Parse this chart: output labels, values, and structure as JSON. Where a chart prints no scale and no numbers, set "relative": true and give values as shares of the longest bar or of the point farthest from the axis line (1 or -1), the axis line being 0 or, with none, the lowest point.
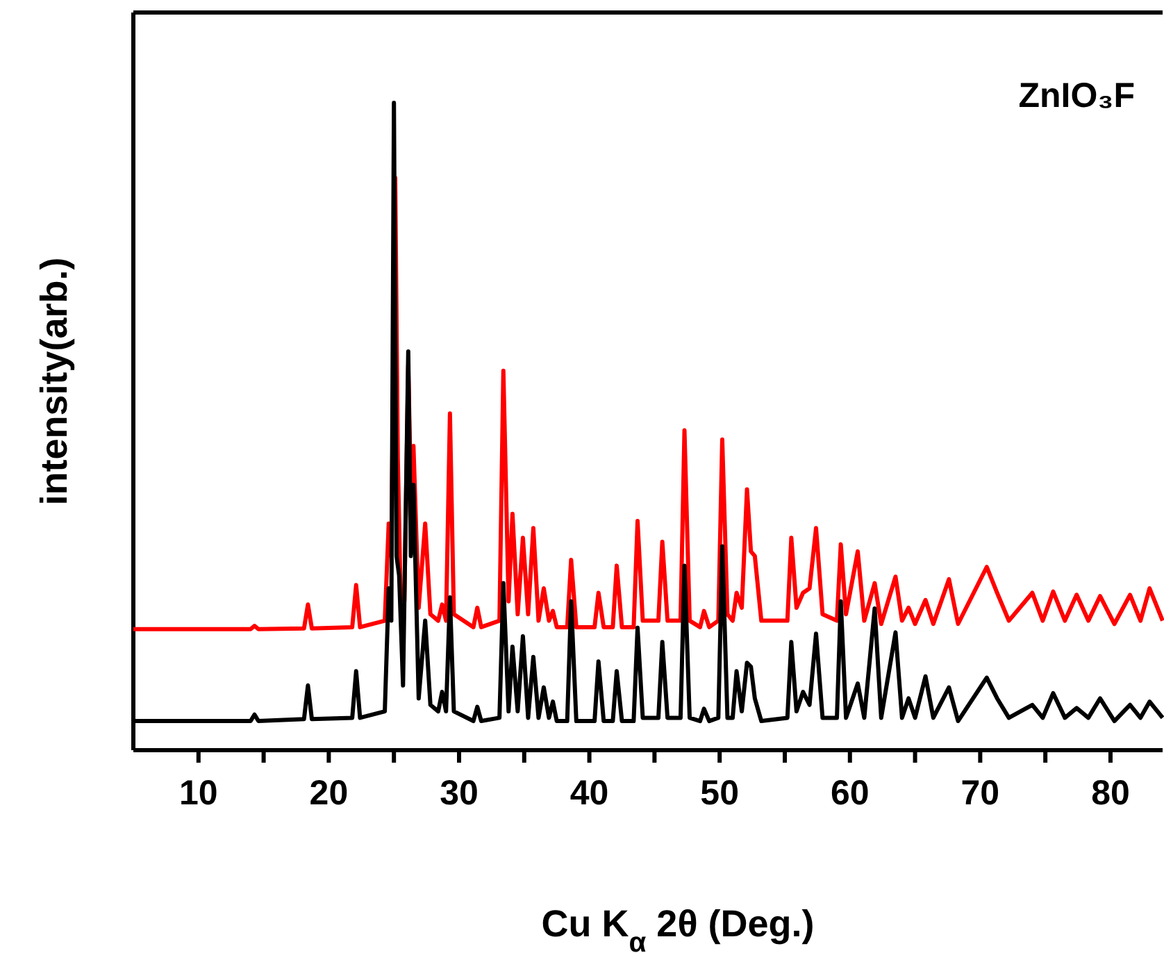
{
  "chart_data": {
    "type": "line",
    "relative": true,
    "xlabel": "Cu K$_{α}$ 2θ (Deg.)",
    "ylabel": "intensity(arb.)",
    "annotations": [
      "ZnIO₃F"
    ],
    "xlim": [
      5,
      84
    ],
    "xticks": [
      10,
      {
        "value": 15,
        "label": null
      },
      20,
      {
        "value": 25,
        "label": null
      },
      30,
      {
        "value": 35,
        "label": null
      },
      40,
      {
        "value": 45,
        "label": null
      },
      50,
      {
        "value": 55,
        "label": null
      },
      60,
      {
        "value": 65,
        "label": null
      },
      70,
      {
        "value": 75,
        "label": null
      },
      80
    ],
    "tick_labels": "x",
    "grid": false,
    "marker": "none",
    "line_style": "solid",
    "series": [
      {
        "color": "#ff0000",
        "x": [
          5,
          14.0,
          14.3,
          14.6,
          18.1,
          18.4,
          18.7,
          21.8,
          22.1,
          22.4,
          24.3,
          24.6,
          24.8,
          25.1,
          25.3,
          25.5,
          25.8,
          26.1,
          26.3,
          26.5,
          26.9,
          27.4,
          27.8,
          28.4,
          28.7,
          29.0,
          29.3,
          29.6,
          31.1,
          31.4,
          31.7,
          33.1,
          33.4,
          33.8,
          34.1,
          34.5,
          34.9,
          35.3,
          35.7,
          36.1,
          36.5,
          36.9,
          37.2,
          37.5,
          38.3,
          38.6,
          39.0,
          40.4,
          40.7,
          41.1,
          41.8,
          42.1,
          42.5,
          43.4,
          43.7,
          44.1,
          45.3,
          45.6,
          46.0,
          47.0,
          47.3,
          47.7,
          48.5,
          48.8,
          49.2,
          49.9,
          50.2,
          50.6,
          51.0,
          51.3,
          51.7,
          52.1,
          52.4,
          52.7,
          53.2,
          55.2,
          55.5,
          55.9,
          56.4,
          56.9,
          57.4,
          57.9,
          59.0,
          59.3,
          59.7,
          60.6,
          61.1,
          61.9,
          62.4,
          63.5,
          64.0,
          64.5,
          65.0,
          65.8,
          66.4,
          67.6,
          68.3,
          70.5,
          71.3,
          72.2,
          74.0,
          74.8,
          75.6,
          76.5,
          77.4,
          78.3,
          79.2,
          80.3,
          81.5,
          82.3,
          83.0,
          84
        ],
        "values": [
          0.187,
          0.187,
          0.192,
          0.187,
          0.188,
          0.225,
          0.188,
          0.19,
          0.255,
          0.19,
          0.2,
          0.35,
          0.3,
          0.884,
          0.45,
          0.25,
          0.23,
          0.594,
          0.4,
          0.47,
          0.22,
          0.35,
          0.21,
          0.2,
          0.225,
          0.2,
          0.52,
          0.21,
          0.19,
          0.22,
          0.19,
          0.2,
          0.586,
          0.23,
          0.365,
          0.21,
          0.328,
          0.21,
          0.343,
          0.2,
          0.25,
          0.2,
          0.215,
          0.19,
          0.19,
          0.294,
          0.19,
          0.19,
          0.243,
          0.19,
          0.19,
          0.285,
          0.19,
          0.19,
          0.354,
          0.2,
          0.2,
          0.322,
          0.2,
          0.2,
          0.494,
          0.2,
          0.19,
          0.215,
          0.19,
          0.2,
          0.48,
          0.21,
          0.2,
          0.243,
          0.22,
          0.403,
          0.307,
          0.3,
          0.2,
          0.2,
          0.328,
          0.22,
          0.243,
          0.25,
          0.343,
          0.21,
          0.2,
          0.318,
          0.21,
          0.307,
          0.2,
          0.258,
          0.195,
          0.268,
          0.2,
          0.22,
          0.195,
          0.232,
          0.195,
          0.264,
          0.195,
          0.283,
          0.243,
          0.2,
          0.243,
          0.2,
          0.245,
          0.2,
          0.24,
          0.2,
          0.238,
          0.195,
          0.24,
          0.2,
          0.25,
          0.2
        ]
      },
      {
        "color": "#000000",
        "x": [
          5,
          14.0,
          14.3,
          14.6,
          18.1,
          18.4,
          18.7,
          21.8,
          22.1,
          22.4,
          24.3,
          24.6,
          24.8,
          25.0,
          25.2,
          25.4,
          25.7,
          26.1,
          26.3,
          26.5,
          26.9,
          27.4,
          27.8,
          28.4,
          28.7,
          29.0,
          29.3,
          29.6,
          31.1,
          31.4,
          31.7,
          33.1,
          33.4,
          33.8,
          34.1,
          34.5,
          34.9,
          35.3,
          35.7,
          36.1,
          36.5,
          36.9,
          37.2,
          37.5,
          38.3,
          38.6,
          39.0,
          40.4,
          40.7,
          41.1,
          41.8,
          42.1,
          42.5,
          43.4,
          43.7,
          44.1,
          45.3,
          45.6,
          46.0,
          47.0,
          47.3,
          47.7,
          48.5,
          48.8,
          49.2,
          49.9,
          50.2,
          50.6,
          51.0,
          51.3,
          51.7,
          52.1,
          52.4,
          52.7,
          53.2,
          55.2,
          55.5,
          55.9,
          56.4,
          56.9,
          57.4,
          57.9,
          59.0,
          59.3,
          59.7,
          60.6,
          61.1,
          61.9,
          62.4,
          63.5,
          64.0,
          64.5,
          65.0,
          65.8,
          66.4,
          67.6,
          68.3,
          70.5,
          71.3,
          72.2,
          74.0,
          74.8,
          75.6,
          76.5,
          77.4,
          78.3,
          79.2,
          80.3,
          81.5,
          82.3,
          83.0,
          84
        ],
        "values": [
          0.045,
          0.045,
          0.055,
          0.045,
          0.048,
          0.1,
          0.048,
          0.05,
          0.122,
          0.05,
          0.06,
          0.25,
          0.2,
          1.0,
          0.3,
          0.27,
          0.1,
          0.616,
          0.3,
          0.41,
          0.08,
          0.2,
          0.07,
          0.06,
          0.09,
          0.06,
          0.236,
          0.06,
          0.045,
          0.067,
          0.045,
          0.05,
          0.258,
          0.06,
          0.16,
          0.06,
          0.176,
          0.05,
          0.144,
          0.05,
          0.097,
          0.05,
          0.075,
          0.045,
          0.045,
          0.23,
          0.045,
          0.045,
          0.137,
          0.045,
          0.045,
          0.122,
          0.045,
          0.045,
          0.189,
          0.05,
          0.05,
          0.167,
          0.05,
          0.05,
          0.285,
          0.05,
          0.045,
          0.064,
          0.045,
          0.05,
          0.315,
          0.05,
          0.05,
          0.122,
          0.06,
          0.135,
          0.129,
          0.08,
          0.045,
          0.05,
          0.167,
          0.06,
          0.09,
          0.07,
          0.18,
          0.05,
          0.05,
          0.23,
          0.05,
          0.103,
          0.05,
          0.219,
          0.05,
          0.182,
          0.05,
          0.08,
          0.05,
          0.114,
          0.05,
          0.097,
          0.045,
          0.112,
          0.08,
          0.05,
          0.07,
          0.05,
          0.088,
          0.05,
          0.065,
          0.05,
          0.08,
          0.045,
          0.07,
          0.05,
          0.075,
          0.05
        ]
      }
    ]
  }
}
